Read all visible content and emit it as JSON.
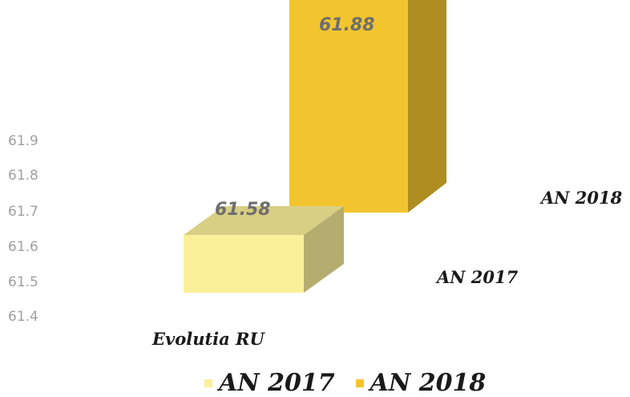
{
  "chart_data": {
    "type": "bar",
    "categories": [
      "Evolutia RU"
    ],
    "series": [
      {
        "name": "AN 2017",
        "values": [
          61.58
        ],
        "color": "#fbf09a"
      },
      {
        "name": "AN 2018",
        "values": [
          61.88
        ],
        "color": "#f2c52e"
      }
    ],
    "y_ticks": [
      "61.9",
      "61.8",
      "61.7",
      "61.6",
      "61.5",
      "61.4"
    ],
    "ylim": [
      61.4,
      61.9
    ],
    "depth_labels": [
      "AN 2018",
      "AN 2017"
    ],
    "data_labels": [
      "61.88",
      "61.58"
    ],
    "legend_position": "bottom",
    "three_d": true,
    "grid": false
  }
}
